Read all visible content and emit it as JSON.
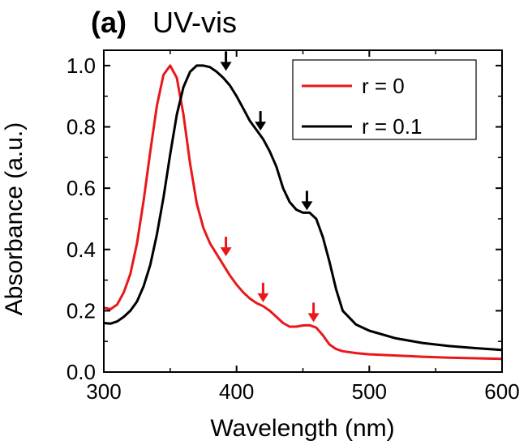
{
  "chart_data": {
    "type": "line",
    "title_label": "(a)",
    "title_text": "UV-vis",
    "xlabel": "Wavelength (nm)",
    "ylabel": "Absorbance (a.u.)",
    "xlim": [
      300,
      600
    ],
    "ylim": [
      0.0,
      1.05
    ],
    "xticks": [
      300,
      400,
      500,
      600
    ],
    "xtick_labels": [
      "300",
      "400",
      "500",
      "600"
    ],
    "yticks": [
      0.0,
      0.2,
      0.4,
      0.6,
      0.8,
      1.0
    ],
    "ytick_labels": [
      "0.0",
      "0.2",
      "0.4",
      "0.6",
      "0.8",
      "1.0"
    ],
    "grid": false,
    "legend_position": "top-right",
    "series": [
      {
        "name": "r = 0",
        "color": "#e8181b",
        "x": [
          300,
          305,
          310,
          315,
          320,
          325,
          330,
          335,
          340,
          345,
          350,
          355,
          360,
          365,
          370,
          375,
          380,
          385,
          390,
          395,
          400,
          405,
          410,
          415,
          420,
          425,
          430,
          435,
          440,
          445,
          450,
          455,
          460,
          465,
          470,
          475,
          480,
          490,
          500,
          520,
          540,
          560,
          580,
          600
        ],
        "y": [
          0.21,
          0.205,
          0.22,
          0.26,
          0.32,
          0.42,
          0.56,
          0.72,
          0.87,
          0.97,
          1.0,
          0.96,
          0.84,
          0.68,
          0.55,
          0.47,
          0.42,
          0.385,
          0.35,
          0.315,
          0.285,
          0.26,
          0.24,
          0.225,
          0.215,
          0.2,
          0.18,
          0.16,
          0.148,
          0.148,
          0.152,
          0.153,
          0.145,
          0.12,
          0.09,
          0.075,
          0.068,
          0.062,
          0.058,
          0.054,
          0.05,
          0.047,
          0.045,
          0.043
        ]
      },
      {
        "name": "r = 0.1",
        "color": "#000000",
        "x": [
          300,
          305,
          310,
          315,
          320,
          325,
          330,
          335,
          340,
          345,
          350,
          355,
          360,
          365,
          370,
          375,
          380,
          385,
          390,
          395,
          400,
          405,
          410,
          415,
          420,
          425,
          430,
          435,
          440,
          445,
          450,
          455,
          460,
          465,
          470,
          475,
          480,
          490,
          500,
          520,
          540,
          560,
          580,
          600
        ],
        "y": [
          0.16,
          0.158,
          0.165,
          0.18,
          0.2,
          0.23,
          0.28,
          0.35,
          0.45,
          0.57,
          0.71,
          0.84,
          0.93,
          0.98,
          1.0,
          1.0,
          0.995,
          0.98,
          0.96,
          0.935,
          0.9,
          0.86,
          0.82,
          0.79,
          0.76,
          0.72,
          0.67,
          0.6,
          0.555,
          0.53,
          0.52,
          0.52,
          0.5,
          0.44,
          0.36,
          0.27,
          0.2,
          0.155,
          0.135,
          0.11,
          0.095,
          0.085,
          0.078,
          0.072
        ]
      }
    ],
    "annotations": [
      {
        "type": "arrow",
        "series": "r = 0.1",
        "x": 392,
        "y": 0.975,
        "color": "#000000"
      },
      {
        "type": "arrow",
        "series": "r = 0.1",
        "x": 418,
        "y": 0.78,
        "color": "#000000"
      },
      {
        "type": "arrow",
        "series": "r = 0.1",
        "x": 453,
        "y": 0.52,
        "color": "#000000"
      },
      {
        "type": "arrow",
        "series": "r = 0",
        "x": 392,
        "y": 0.37,
        "color": "#e8181b"
      },
      {
        "type": "arrow",
        "series": "r = 0",
        "x": 420,
        "y": 0.22,
        "color": "#e8181b"
      },
      {
        "type": "arrow",
        "series": "r = 0",
        "x": 458,
        "y": 0.155,
        "color": "#e8181b"
      }
    ]
  }
}
